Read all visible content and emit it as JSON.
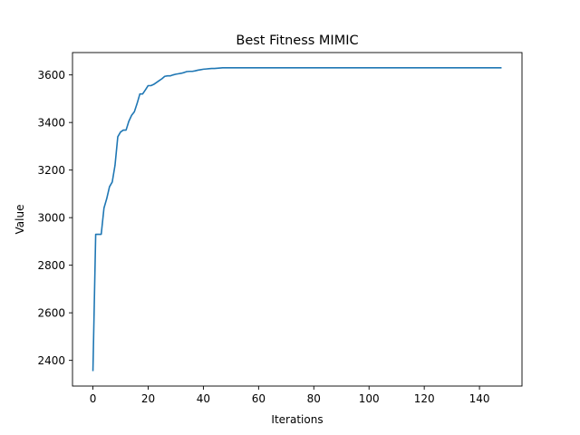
{
  "chart_data": {
    "type": "line",
    "title": "Best Fitness MIMIC",
    "xlabel": "Iterations",
    "ylabel": "Value",
    "xlim": [
      -7.4,
      155.4
    ],
    "ylim": [
      2292,
      3694
    ],
    "xticks": [
      0,
      20,
      40,
      60,
      80,
      100,
      120,
      140
    ],
    "yticks": [
      2400,
      2600,
      2800,
      3000,
      3200,
      3400,
      3600
    ],
    "grid": false,
    "legend": "none",
    "colors": {
      "line": "#1f77b4",
      "axes": "#000000"
    },
    "series": [
      {
        "points": [
          [
            0,
            2355
          ],
          [
            1,
            2930
          ],
          [
            2,
            2930
          ],
          [
            3,
            2930
          ],
          [
            4,
            3040
          ],
          [
            5,
            3080
          ],
          [
            6,
            3130
          ],
          [
            7,
            3150
          ],
          [
            8,
            3220
          ],
          [
            9,
            3340
          ],
          [
            10,
            3360
          ],
          [
            11,
            3368
          ],
          [
            12,
            3368
          ],
          [
            13,
            3405
          ],
          [
            14,
            3430
          ],
          [
            15,
            3445
          ],
          [
            16,
            3480
          ],
          [
            17,
            3520
          ],
          [
            18,
            3520
          ],
          [
            19,
            3537
          ],
          [
            20,
            3555
          ],
          [
            21,
            3555
          ],
          [
            22,
            3560
          ],
          [
            23,
            3568
          ],
          [
            24,
            3576
          ],
          [
            25,
            3584
          ],
          [
            26,
            3594
          ],
          [
            27,
            3596
          ],
          [
            28,
            3596
          ],
          [
            29,
            3600
          ],
          [
            30,
            3603
          ],
          [
            31,
            3605
          ],
          [
            32,
            3607
          ],
          [
            33,
            3610
          ],
          [
            34,
            3614
          ],
          [
            35,
            3615
          ],
          [
            36,
            3615
          ],
          [
            37,
            3617
          ],
          [
            38,
            3620
          ],
          [
            39,
            3622
          ],
          [
            40,
            3624
          ],
          [
            41,
            3625
          ],
          [
            42,
            3626
          ],
          [
            43,
            3627
          ],
          [
            44,
            3627
          ],
          [
            45,
            3628
          ],
          [
            46,
            3629
          ],
          [
            47,
            3630
          ],
          [
            48,
            3630
          ],
          [
            60,
            3630
          ],
          [
            80,
            3630
          ],
          [
            100,
            3630
          ],
          [
            120,
            3630
          ],
          [
            148,
            3630
          ]
        ]
      }
    ]
  }
}
